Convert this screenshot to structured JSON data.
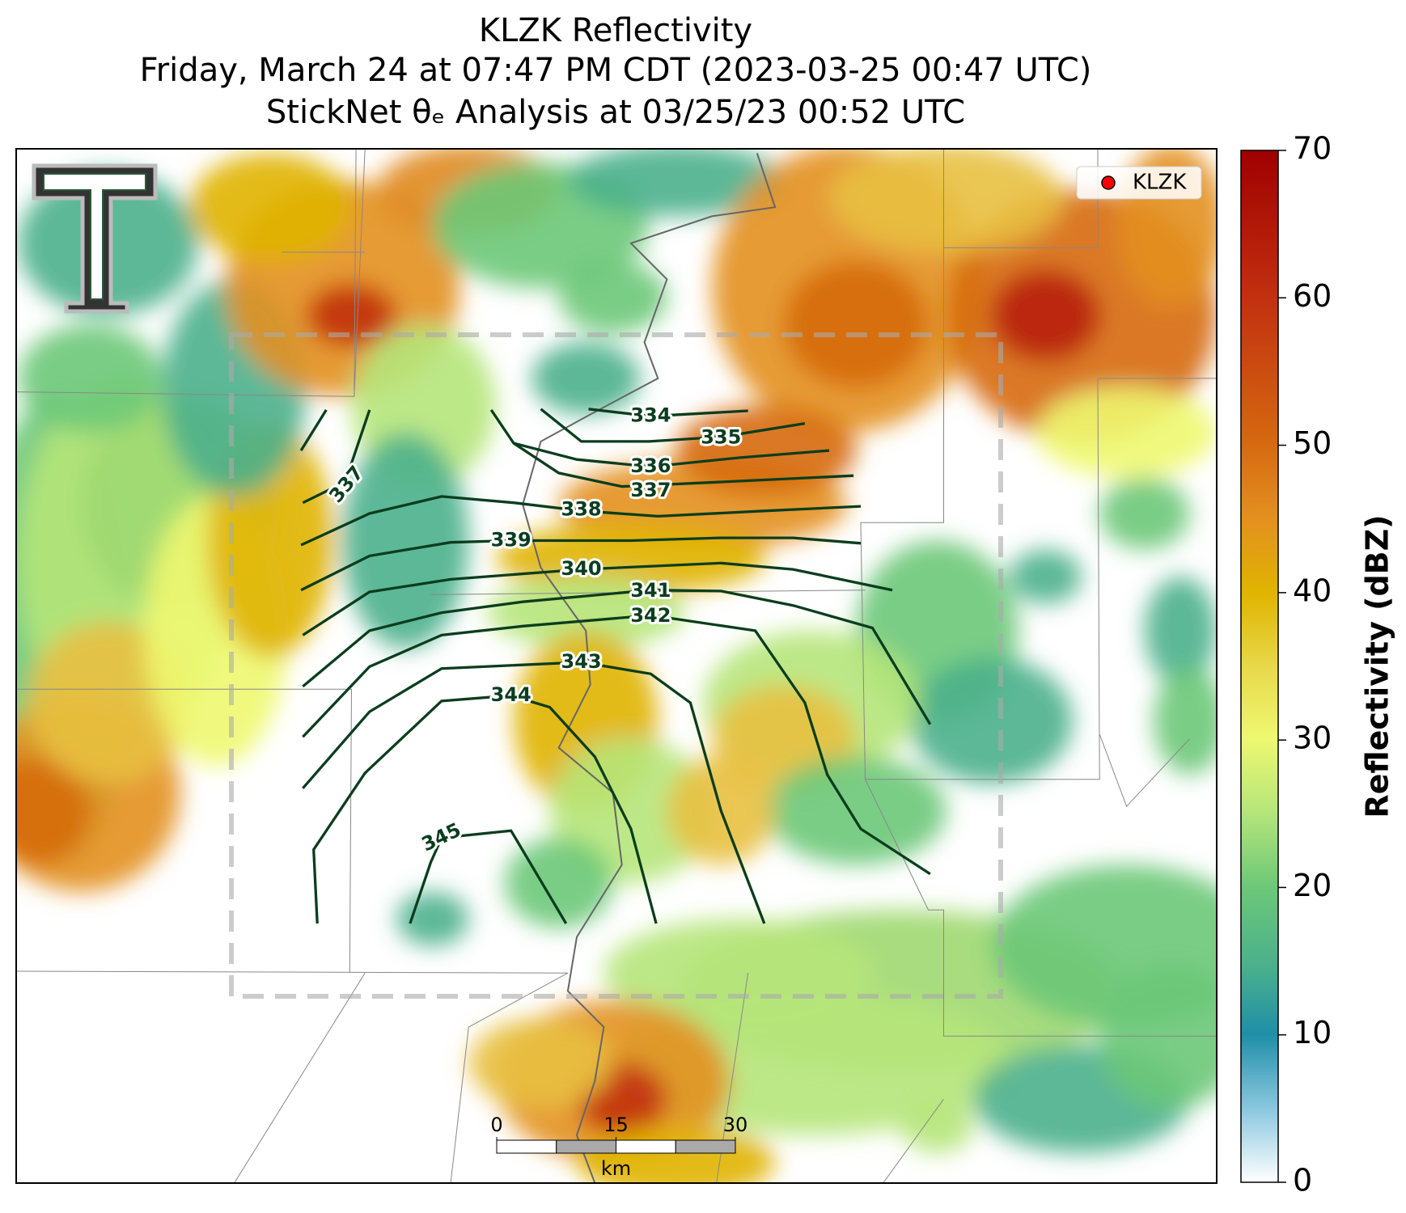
{
  "header": {
    "title_lines": [
      "KLZK Reflectivity",
      "Friday, March 24 at 07:47 PM CDT (2023-03-25 00:47 UTC)",
      "StickNet θₑ Analysis at 03/25/23 00:52 UTC"
    ]
  },
  "map": {
    "legend": {
      "label": "KLZK",
      "color": "#ff0000"
    },
    "contour_levels": [
      334,
      335,
      336,
      337,
      338,
      339,
      340,
      341,
      342,
      343,
      344,
      345
    ],
    "scale_bar": {
      "ticks": [
        0,
        15,
        30
      ],
      "unit": "km"
    }
  },
  "colorbar": {
    "label": "Reflectivity (dBZ)",
    "lim": [
      0,
      70
    ],
    "ticks": [
      0,
      10,
      20,
      30,
      40,
      50,
      60,
      70
    ]
  }
}
